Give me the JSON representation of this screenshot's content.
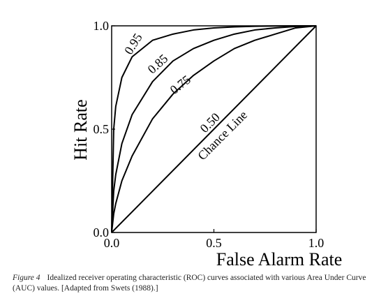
{
  "chart_data": {
    "type": "line",
    "x_label": "False Alarm Rate",
    "y_label": "Hit Rate",
    "annotation": "Chance Line",
    "xlim": [
      0,
      1
    ],
    "ylim": [
      0,
      1
    ],
    "xticks": [
      {
        "value": 0,
        "label": "0.0"
      },
      0.5,
      {
        "value": 1,
        "label": "1.0"
      }
    ],
    "yticks": [
      {
        "value": 0,
        "label": "0.0"
      },
      0.5,
      {
        "value": 1,
        "label": "1.0"
      }
    ],
    "x": [
      0,
      0.01,
      0.02,
      0.05,
      0.1,
      0.2,
      0.3,
      0.4,
      0.5,
      0.6,
      0.7,
      0.8,
      0.9,
      1
    ],
    "series": [
      {
        "name": "0.95",
        "color": "#000000",
        "values": [
          0,
          0.5,
          0.61,
          0.75,
          0.85,
          0.93,
          0.96,
          0.98,
          0.99,
          0.995,
          0.998,
          0.999,
          1,
          1
        ]
      },
      {
        "name": "0.85",
        "color": "#000000",
        "values": [
          0,
          0.2,
          0.28,
          0.43,
          0.57,
          0.73,
          0.83,
          0.89,
          0.93,
          0.96,
          0.98,
          0.99,
          0.997,
          1
        ]
      },
      {
        "name": "0.75",
        "color": "#000000",
        "values": [
          0,
          0.09,
          0.14,
          0.25,
          0.37,
          0.55,
          0.67,
          0.76,
          0.83,
          0.89,
          0.93,
          0.96,
          0.99,
          1
        ]
      },
      {
        "name": "0.50",
        "color": "#000000",
        "values": [
          0,
          0.01,
          0.02,
          0.05,
          0.1,
          0.2,
          0.3,
          0.4,
          0.5,
          0.6,
          0.7,
          0.8,
          0.9,
          1
        ]
      }
    ]
  },
  "caption_label": "Figure 4",
  "caption": "Idealized receiver operating characteristic (ROC) curves associated with various Area Under Curve (AUC) values. [Adapted from Swets (1988).]"
}
